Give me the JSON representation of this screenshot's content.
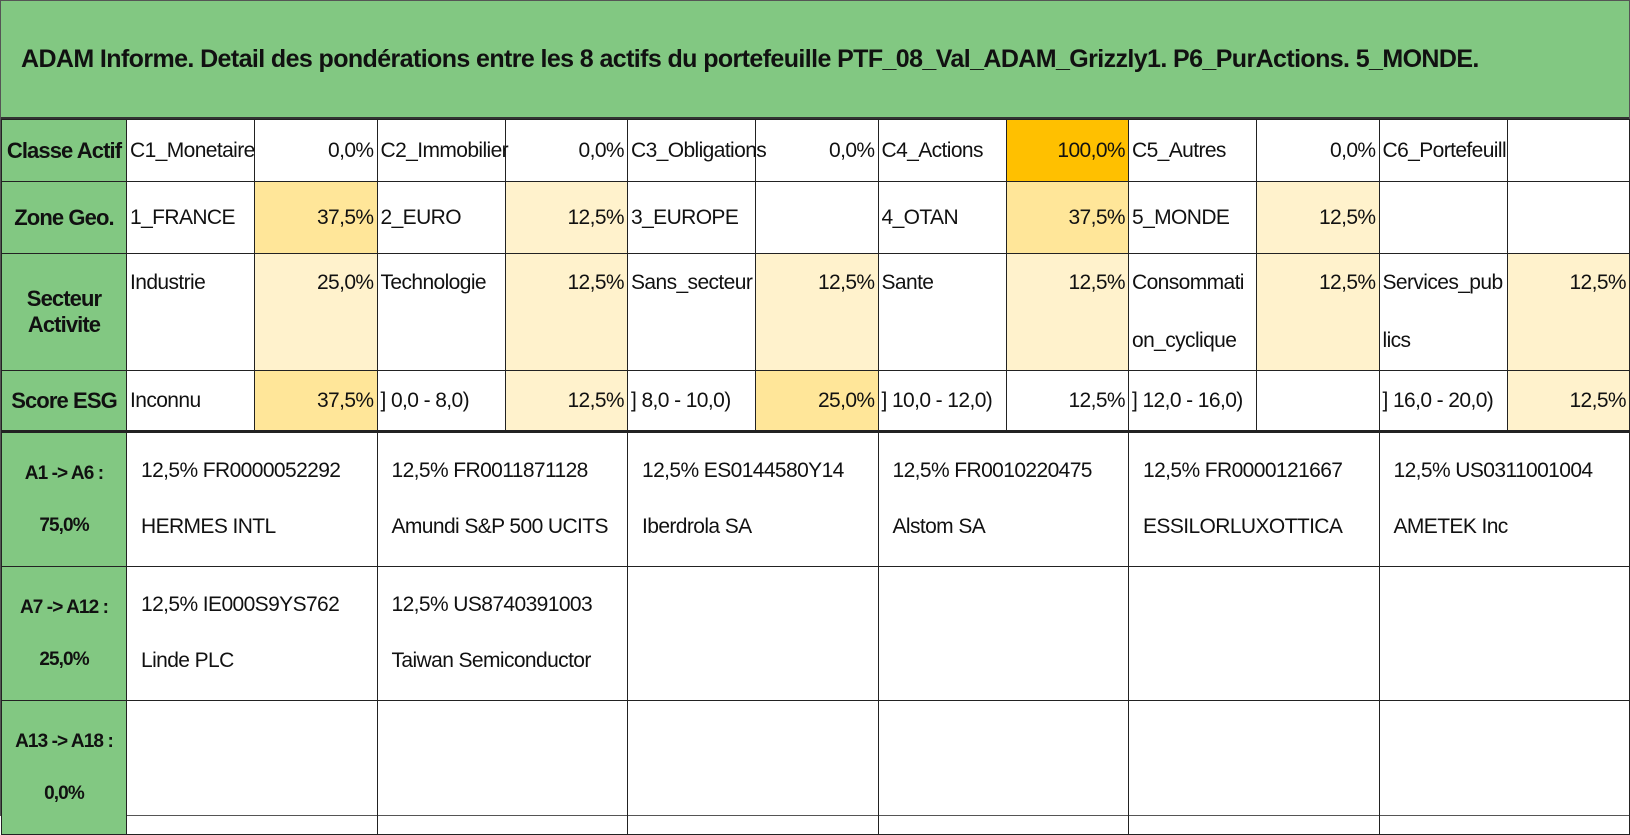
{
  "title": "ADAM Informe. Detail des pondérations entre les 8 actifs du portefeuille PTF_08_Val_ADAM_Grizzly1. P6_PurActions. 5_MONDE.",
  "summary": [
    {
      "label": "Classe Actif",
      "cells": [
        {
          "name": "C1_Monetaire",
          "value": "0,0%"
        },
        {
          "name": "C2_Immobilier",
          "value": "0,0%"
        },
        {
          "name": "C3_Obligations",
          "value": "0,0%"
        },
        {
          "name": "C4_Actions",
          "value": "100,0%",
          "fill": "#ffc000"
        },
        {
          "name": "C5_Autres",
          "value": "0,0%"
        },
        {
          "name": "C6_Portefeuill",
          "value": null
        }
      ]
    },
    {
      "label": "Zone Geo.",
      "cells": [
        {
          "name": "1_FRANCE",
          "value": "37,5%",
          "fill": "#ffe699"
        },
        {
          "name": "2_EURO",
          "value": "12,5%",
          "fill": "#fff2cc"
        },
        {
          "name": "3_EUROPE",
          "value": null
        },
        {
          "name": "4_OTAN",
          "value": "37,5%",
          "fill": "#ffe699"
        },
        {
          "name": "5_MONDE",
          "value": "12,5%",
          "fill": "#fff2cc"
        },
        {
          "name": null,
          "value": null
        }
      ]
    },
    {
      "label": "Secteur Activite",
      "cells": [
        {
          "name": "Industrie",
          "value": "25,0%",
          "fill": "#fff2cc"
        },
        {
          "name": "Technologie",
          "value": "12,5%",
          "fill": "#fff2cc"
        },
        {
          "name": "Sans_secteur",
          "value": "12,5%",
          "fill": "#fff2cc"
        },
        {
          "name": "Sante",
          "value": "12,5%",
          "fill": "#fff2cc"
        },
        {
          "name": "Consommati on_cyclique",
          "value": "12,5%",
          "fill": "#fff2cc"
        },
        {
          "name": "Services_pub lics",
          "value": "12,5%",
          "fill": "#fff2cc"
        }
      ]
    },
    {
      "label": "Score ESG",
      "cells": [
        {
          "name": "Inconnu",
          "value": "37,5%",
          "fill": "#ffe699"
        },
        {
          "name": "] 0,0 - 8,0)",
          "value": "12,5%",
          "fill": "#fff2cc"
        },
        {
          "name": "] 8,0 - 10,0)",
          "value": "25,0%",
          "fill": "#ffe699"
        },
        {
          "name": "] 10,0 - 12,0)",
          "value": "12,5%"
        },
        {
          "name": "] 12,0 - 16,0)",
          "value": null
        },
        {
          "name": "] 16,0 - 20,0)",
          "value": "12,5%",
          "fill": "#fff2cc"
        }
      ]
    }
  ],
  "assets": [
    {
      "range": "A1 -> A6 :",
      "total": "75,0%",
      "items": [
        {
          "weight": "12,5%",
          "isin": "FR0000052292",
          "name": "HERMES INTL"
        },
        {
          "weight": "12,5%",
          "isin": "FR0011871128",
          "name": "Amundi S&P 500 UCITS"
        },
        {
          "weight": "12,5%",
          "isin": "ES0144580Y14",
          "name": "Iberdrola SA"
        },
        {
          "weight": "12,5%",
          "isin": "FR0010220475",
          "name": "Alstom SA"
        },
        {
          "weight": "12,5%",
          "isin": "FR0000121667",
          "name": "ESSILORLUXOTTICA"
        },
        {
          "weight": "12,5%",
          "isin": "US0311001004",
          "name": "AMETEK Inc"
        }
      ]
    },
    {
      "range": "A7 -> A12 :",
      "total": "25,0%",
      "items": [
        {
          "weight": "12,5%",
          "isin": "IE000S9YS762",
          "name": "Linde PLC"
        },
        {
          "weight": "12,5%",
          "isin": "US8740391003",
          "name": "Taiwan Semiconductor"
        },
        null,
        null,
        null,
        null
      ]
    },
    {
      "range": "A13 -> A18 :",
      "total": "0,0%",
      "items": [
        null,
        null,
        null,
        null,
        null,
        null
      ]
    }
  ]
}
